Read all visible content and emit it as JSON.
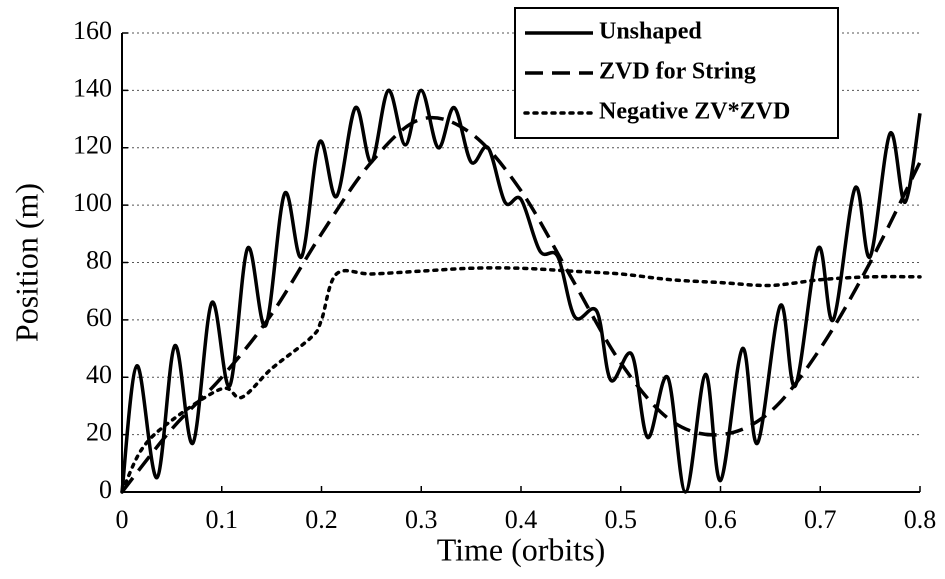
{
  "chart_data": {
    "type": "line",
    "xlabel": "Time (orbits)",
    "ylabel": "Position (m)",
    "xlim": [
      0,
      0.8
    ],
    "xticks": [
      0,
      0.1,
      0.2,
      0.3,
      0.4,
      0.5,
      0.6,
      0.7,
      0.8
    ],
    "ylim": [
      0,
      160
    ],
    "yticks": [
      0,
      20,
      40,
      60,
      80,
      100,
      120,
      140,
      160
    ],
    "grid": true,
    "legend": "upper right",
    "series": [
      {
        "name": "Unshaped",
        "color": "#000000",
        "linestyle": "solid",
        "x": [
          0,
          0.015,
          0.035,
          0.053,
          0.071,
          0.09,
          0.108,
          0.126,
          0.144,
          0.163,
          0.18,
          0.198,
          0.215,
          0.234,
          0.25,
          0.267,
          0.284,
          0.3,
          0.317,
          0.333,
          0.35,
          0.367,
          0.384,
          0.4,
          0.419,
          0.437,
          0.454,
          0.476,
          0.49,
          0.511,
          0.527,
          0.547,
          0.565,
          0.585,
          0.6,
          0.622,
          0.637,
          0.66,
          0.675,
          0.698,
          0.713,
          0.735,
          0.75,
          0.77,
          0.785,
          0.8
        ],
        "values": [
          0,
          44,
          5,
          51,
          17,
          66,
          37,
          85,
          58,
          104,
          82,
          122,
          103,
          134,
          115,
          140,
          121,
          140,
          120,
          134,
          115,
          120,
          101,
          102,
          84,
          82,
          61,
          63,
          39,
          48,
          19,
          40,
          0,
          41,
          4,
          50,
          17,
          65,
          37,
          85,
          60,
          106,
          82,
          125,
          101,
          132
        ]
      },
      {
        "name": "ZVD for String",
        "color": "#000000",
        "linestyle": "dashed",
        "x": [
          0,
          0.05,
          0.1,
          0.15,
          0.2,
          0.25,
          0.3,
          0.35,
          0.4,
          0.45,
          0.5,
          0.55,
          0.6,
          0.65,
          0.7,
          0.75,
          0.8
        ],
        "values": [
          0,
          22,
          40,
          62,
          90,
          115,
          130,
          125,
          105,
          75,
          45,
          25,
          20,
          28,
          50,
          80,
          115
        ]
      },
      {
        "name": "Negative ZV*ZVD",
        "color": "#000000",
        "linestyle": "dotted",
        "x": [
          0,
          0.02,
          0.05,
          0.1,
          0.12,
          0.15,
          0.19,
          0.2,
          0.215,
          0.25,
          0.3,
          0.35,
          0.4,
          0.45,
          0.5,
          0.55,
          0.6,
          0.65,
          0.7,
          0.75,
          0.8
        ],
        "values": [
          0,
          15,
          25,
          36,
          33,
          43,
          54,
          60,
          76,
          76,
          77,
          78,
          78,
          77,
          76,
          74,
          73,
          72,
          74,
          75,
          75
        ]
      }
    ]
  }
}
